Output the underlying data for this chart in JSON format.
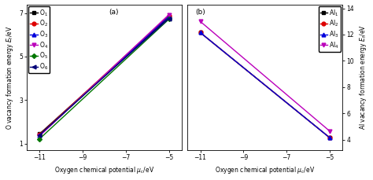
{
  "panel_a": {
    "label": "(a)",
    "x": [
      -11,
      -5
    ],
    "series": [
      {
        "label": "O$_1$",
        "color": "#000000",
        "marker": "s",
        "markersize": 3.5,
        "y": [
          1.45,
          6.8
        ]
      },
      {
        "label": "O$_2$",
        "color": "#dd0000",
        "marker": "o",
        "markersize": 3.5,
        "y": [
          1.42,
          6.88
        ]
      },
      {
        "label": "O$_3$",
        "color": "#0000dd",
        "marker": "^",
        "markersize": 3.5,
        "y": [
          1.38,
          6.85
        ]
      },
      {
        "label": "O$_4$",
        "color": "#bb00bb",
        "marker": "v",
        "markersize": 3.5,
        "y": [
          1.35,
          6.93
        ]
      },
      {
        "label": "O$_5$",
        "color": "#007700",
        "marker": "D",
        "markersize": 3.0,
        "y": [
          1.22,
          6.72
        ]
      },
      {
        "label": "O$_6$",
        "color": "#000077",
        "marker": "<",
        "markersize": 3.5,
        "y": [
          1.4,
          6.75
        ]
      }
    ],
    "ylabel_left": "O vacancy formation energy $E_\\mathrm{f}$/eV",
    "xlabel": "Oxygen chemical potential $\\mu_\\mathrm{c}$/eV",
    "xlim": [
      -11.6,
      -4.4
    ],
    "ylim": [
      0.7,
      7.4
    ],
    "yticks": [
      1,
      3,
      5,
      7
    ],
    "xticks": [
      -11,
      -9,
      -7,
      -5
    ]
  },
  "panel_b": {
    "label": "(b)",
    "x": [
      -11,
      -5
    ],
    "series": [
      {
        "label": "Al$_1$",
        "color": "#000000",
        "marker": "s",
        "markersize": 3.5,
        "y": [
          12.15,
          4.15
        ]
      },
      {
        "label": "Al$_2$",
        "color": "#dd0000",
        "marker": "o",
        "markersize": 3.5,
        "y": [
          12.15,
          4.15
        ]
      },
      {
        "label": "Al$_3$",
        "color": "#0000dd",
        "marker": "^",
        "markersize": 3.5,
        "y": [
          12.15,
          4.15
        ]
      },
      {
        "label": "Al$_4$",
        "color": "#bb00bb",
        "marker": "v",
        "markersize": 3.5,
        "y": [
          13.0,
          4.65
        ]
      }
    ],
    "ylabel_right": "Al vacancy formation energy $E_\\mathrm{f}$/eV",
    "xlabel": "Oxygen chemical potential $\\mu_\\mathrm{c}$/eV",
    "xlim": [
      -11.6,
      -4.4
    ],
    "ylim": [
      3.2,
      14.3
    ],
    "yticks": [
      4,
      6,
      8,
      10,
      12,
      14
    ],
    "xticks": [
      -11,
      -9,
      -7,
      -5
    ]
  },
  "linewidth": 1.0,
  "legend_fontsize": 5.5,
  "axis_fontsize": 5.5,
  "tick_fontsize": 5.5,
  "label_fontsize": 6.5
}
